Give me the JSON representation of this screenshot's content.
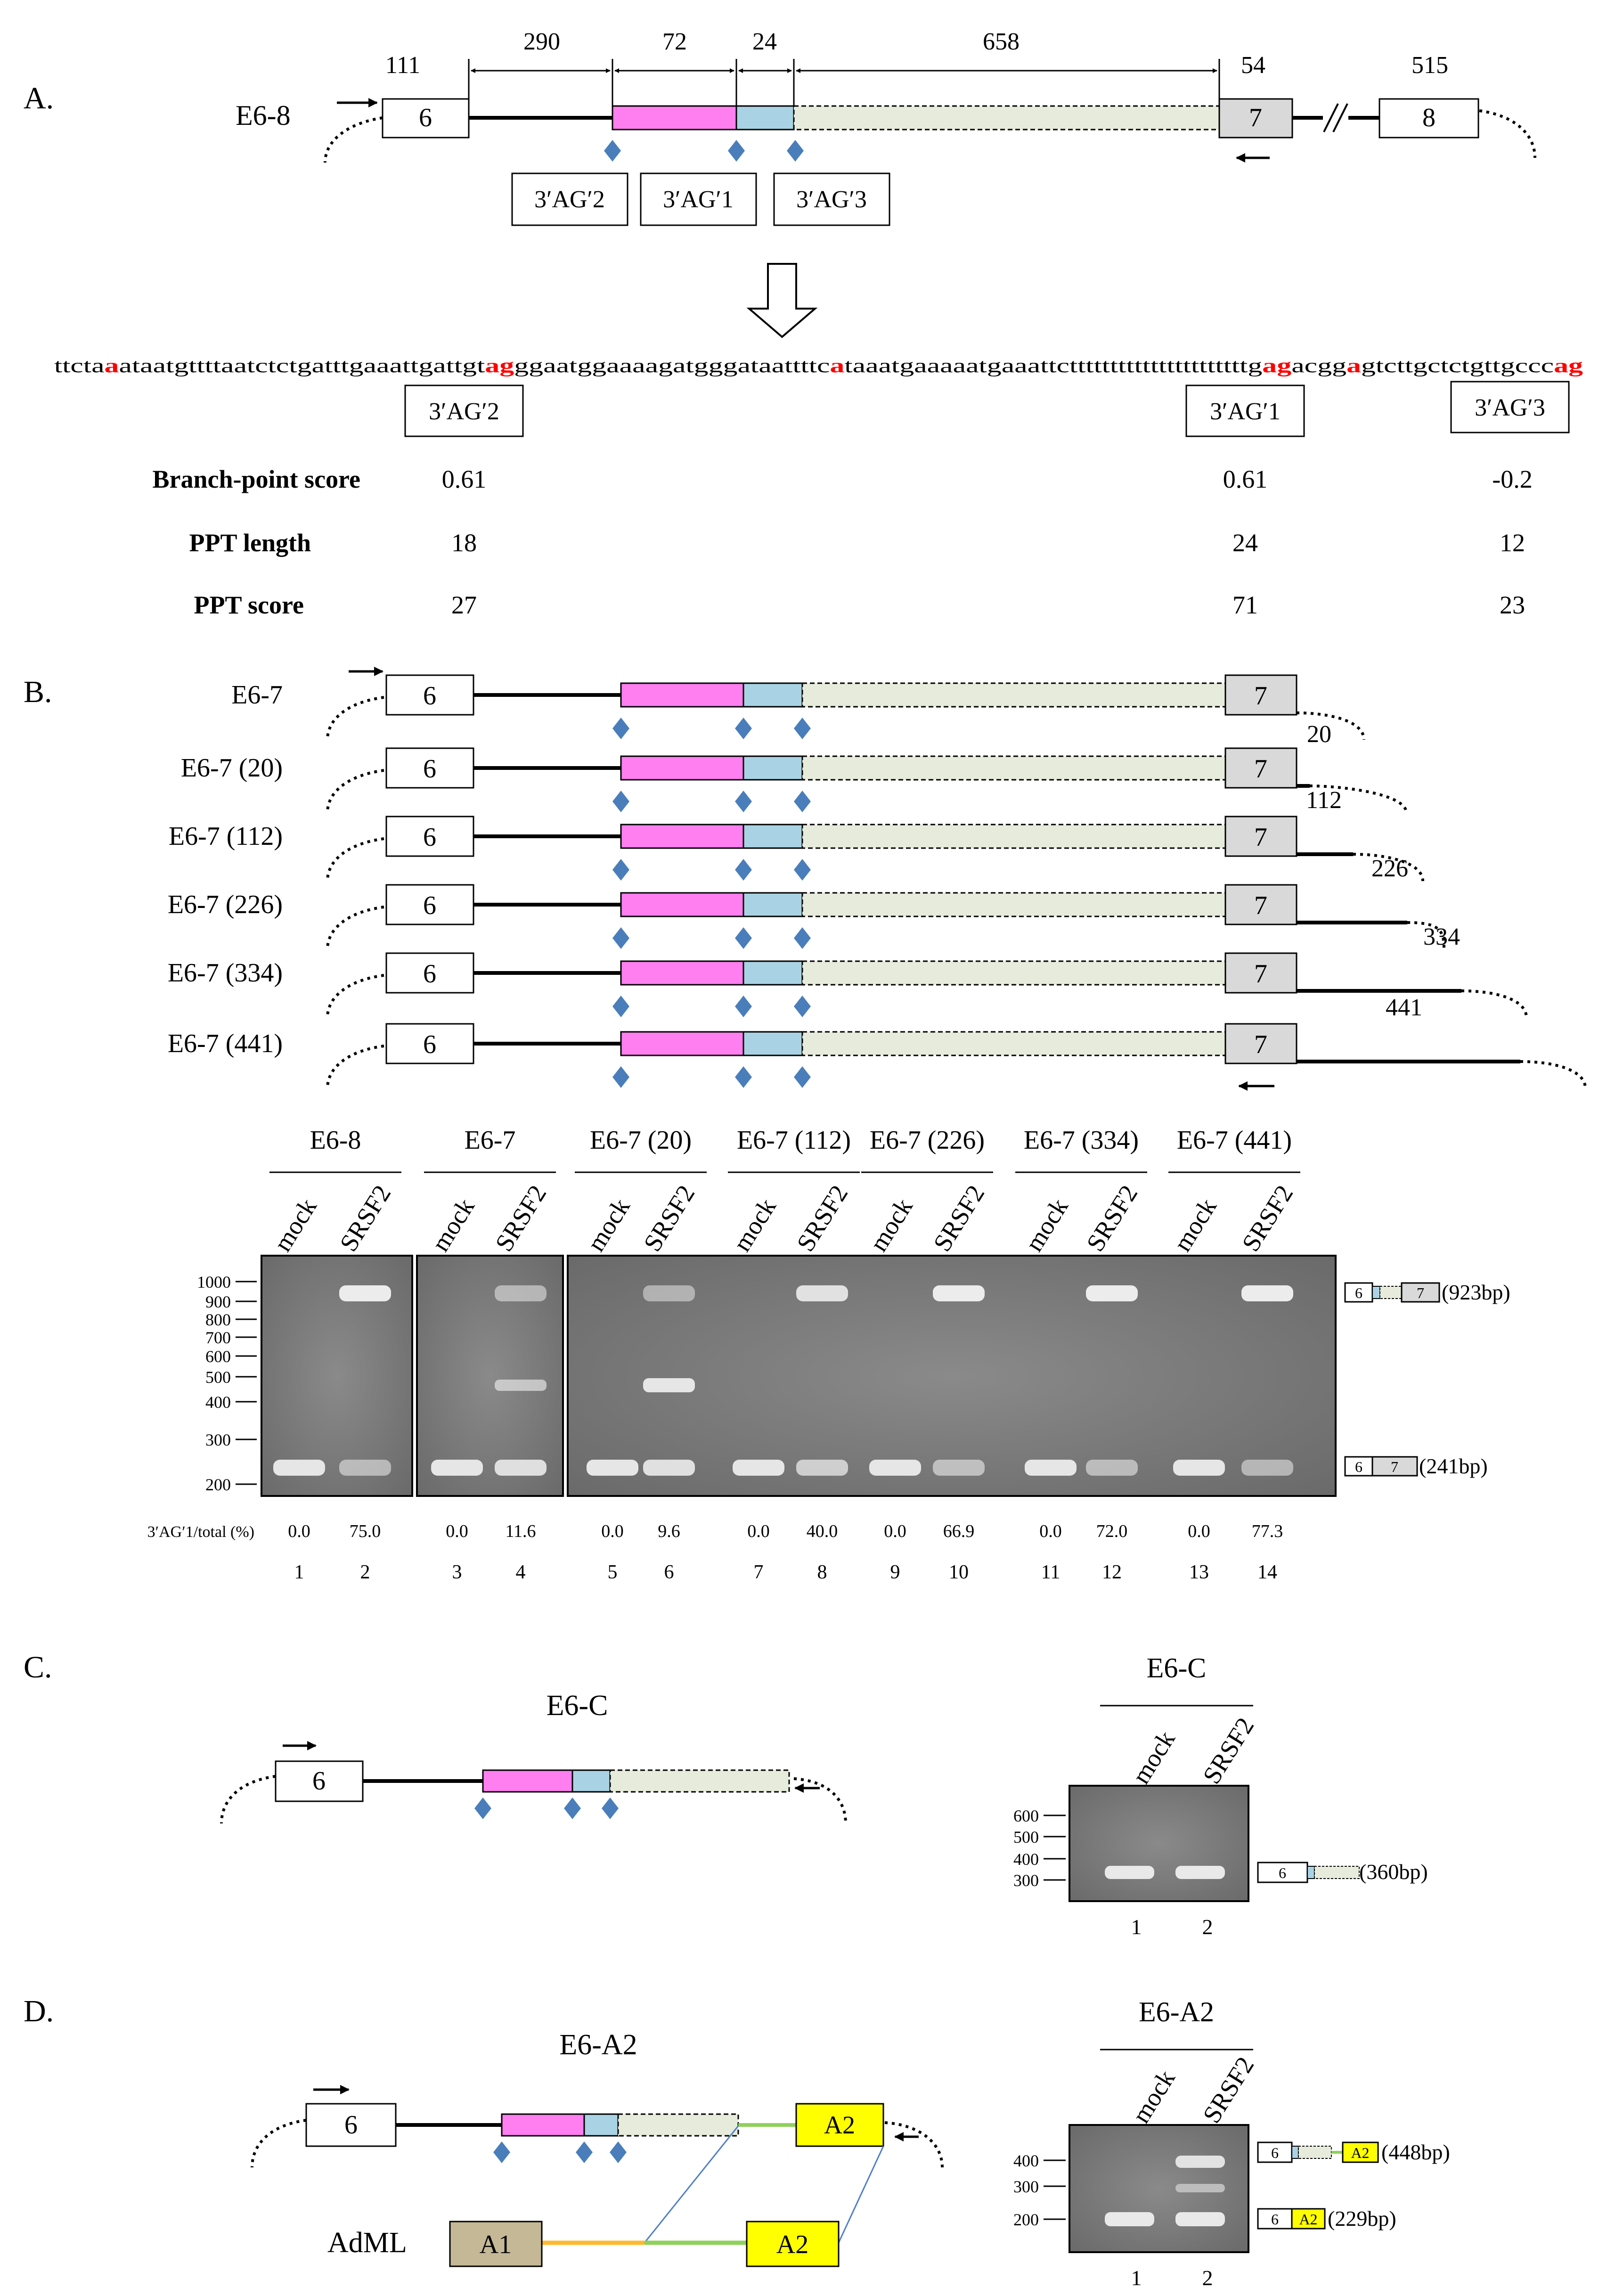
{
  "panelA": {
    "label": "A.",
    "construct": "E6-8",
    "lengths": [
      "111",
      "290",
      "72",
      "24",
      "658",
      "54",
      "515"
    ],
    "exons": [
      "6",
      "7",
      "8"
    ],
    "sites": [
      "3′AG′2",
      "3′AG′1",
      "3′AG′3"
    ],
    "sequence": [
      {
        "t": "ttcta",
        "red": false
      },
      {
        "t": "a",
        "red": true
      },
      {
        "t": "ataatgttttaatctctgatttgaaattgattgt",
        "red": false
      },
      {
        "t": "ag",
        "red": true
      },
      {
        "t": "ggaatggaaaagatgggataattttc",
        "red": false
      },
      {
        "t": "a",
        "red": true
      },
      {
        "t": "taaatgaaaaatgaaattcttttttttttttttttttttttg",
        "red": false
      },
      {
        "t": "ag",
        "red": true
      },
      {
        "t": "acgg",
        "red": false
      },
      {
        "t": "a",
        "red": true
      },
      {
        "t": "gtcttgctctgttgccc",
        "red": false
      },
      {
        "t": "ag",
        "red": true
      }
    ],
    "table": {
      "rows": [
        {
          "label": "Branch-point score",
          "values": [
            "0.61",
            "0.61",
            "-0.2"
          ]
        },
        {
          "label": "PPT length",
          "values": [
            "18",
            "24",
            "12"
          ]
        },
        {
          "label": "PPT score",
          "values": [
            "27",
            "71",
            "23"
          ]
        }
      ]
    }
  },
  "panelB": {
    "label": "B.",
    "constructs": [
      {
        "name": "E6-7",
        "ext": ""
      },
      {
        "name": "E6-7 (20)",
        "ext": "20"
      },
      {
        "name": "E6-7 (112)",
        "ext": "112"
      },
      {
        "name": "E6-7 (226)",
        "ext": "226"
      },
      {
        "name": "E6-7 (334)",
        "ext": "334"
      },
      {
        "name": "E6-7 (441)",
        "ext": "441"
      }
    ],
    "exons": [
      "6",
      "7"
    ],
    "gel_groups": [
      "E6-8",
      "E6-7",
      "E6-7 (20)",
      "E6-7 (112)",
      "E6-7 (226)",
      "E6-7 (334)",
      "E6-7 (441)"
    ],
    "lane_conditions": [
      "mock",
      "SRSF2"
    ],
    "ladder": [
      "1000",
      "900",
      "800",
      "700",
      "600",
      "500",
      "400",
      "300",
      "200"
    ],
    "products": [
      {
        "exon_left": "6",
        "exon_right": "7",
        "size": "(923bp)"
      },
      {
        "exon_left": "6",
        "exon_right": "7",
        "size": "(241bp)"
      }
    ],
    "quant_label": "3′AG′1/total (%)",
    "quant": [
      {
        "lane": "1",
        "value": "0.0"
      },
      {
        "lane": "2",
        "value": "75.0"
      },
      {
        "lane": "3",
        "value": "0.0"
      },
      {
        "lane": "4",
        "value": "11.6"
      },
      {
        "lane": "5",
        "value": "0.0"
      },
      {
        "lane": "6",
        "value": "9.6"
      },
      {
        "lane": "7",
        "value": "0.0"
      },
      {
        "lane": "8",
        "value": "40.0"
      },
      {
        "lane": "9",
        "value": "0.0"
      },
      {
        "lane": "10",
        "value": "66.9"
      },
      {
        "lane": "11",
        "value": "0.0"
      },
      {
        "lane": "12",
        "value": "72.0"
      },
      {
        "lane": "13",
        "value": "0.0"
      },
      {
        "lane": "14",
        "value": "77.3"
      }
    ]
  },
  "panelC": {
    "label": "C.",
    "construct": "E6-C",
    "exon": "6",
    "gel_title": "E6-C",
    "lane_conditions": [
      "mock",
      "SRSF2"
    ],
    "ladder": [
      "600",
      "500",
      "400",
      "300"
    ],
    "product": {
      "exon": "6",
      "size": "(360bp)"
    },
    "lanes": [
      "1",
      "2"
    ]
  },
  "panelD": {
    "label": "D.",
    "construct": "E6-A2",
    "exons": [
      "6",
      "A2"
    ],
    "admL": {
      "name": "AdML",
      "exons": [
        "A1",
        "A2"
      ]
    },
    "gel_title": "E6-A2",
    "lane_conditions": [
      "mock",
      "SRSF2"
    ],
    "ladder": [
      "400",
      "300",
      "200"
    ],
    "products": [
      {
        "exon_left": "6",
        "exon_right": "A2",
        "size": "(448bp)"
      },
      {
        "exon_left": "6",
        "exon_right": "A2",
        "size": "(229bp)"
      }
    ],
    "lanes": [
      "1",
      "2"
    ]
  },
  "colors": {
    "magenta": "#ff7ef0",
    "blue": "#a9d3e4",
    "beige": "#e6ebdb",
    "grayExon": "#d9d9d9",
    "diamond": "#4a7ebb",
    "red": "#ff0000",
    "yellow": "#ffff00",
    "admlExon": "#c4b896",
    "green": "#8fd15a",
    "orange": "#ffb92e",
    "gel": "#7d7d7d",
    "band": "#ececec"
  }
}
